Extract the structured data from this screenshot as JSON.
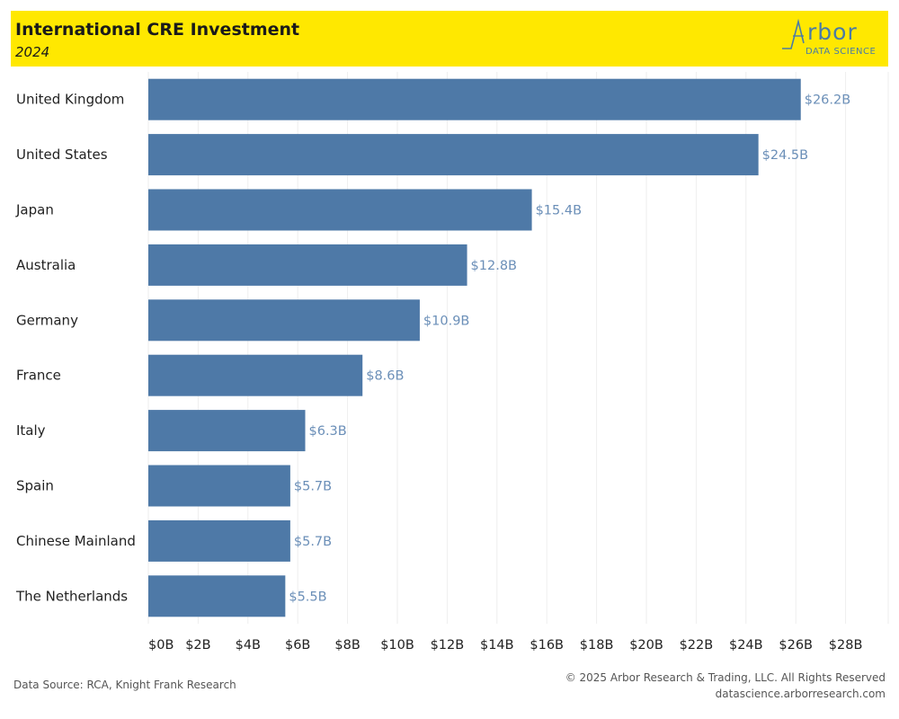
{
  "header": {
    "title": "International CRE Investment",
    "subtitle": "2024",
    "logo_word": "rbor",
    "logo_sub": "DATA SCIENCE"
  },
  "colors": {
    "header_bg": "#ffe800",
    "bar": "#4e79a7",
    "label": "#6b8fb8",
    "grid": "#eeeeee"
  },
  "chart_data": {
    "type": "bar",
    "orientation": "horizontal",
    "categories": [
      "United Kingdom",
      "United States",
      "Japan",
      "Australia",
      "Germany",
      "France",
      "Italy",
      "Spain",
      "Chinese Mainland",
      "The Netherlands"
    ],
    "values": [
      26.2,
      24.5,
      15.4,
      12.8,
      10.9,
      8.6,
      6.3,
      5.7,
      5.7,
      5.5
    ],
    "data_labels": [
      "$26.2B",
      "$24.5B",
      "$15.4B",
      "$12.8B",
      "$10.9B",
      "$8.6B",
      "$6.3B",
      "$5.7B",
      "$5.7B",
      "$5.5B"
    ],
    "xlim": [
      0,
      29
    ],
    "x_ticks": [
      0,
      2,
      4,
      6,
      8,
      10,
      12,
      14,
      16,
      18,
      20,
      22,
      24,
      26,
      28
    ],
    "x_tick_labels": [
      "$0B",
      "$2B",
      "$4B",
      "$6B",
      "$8B",
      "$10B",
      "$12B",
      "$14B",
      "$16B",
      "$18B",
      "$20B",
      "$22B",
      "$24B",
      "$26B",
      "$28B"
    ],
    "grid": true
  },
  "footer": {
    "source": "Data Source: RCA, Knight Frank Research",
    "copyright": "© 2025 Arbor Research & Trading, LLC. All Rights Reserved",
    "website": "datascience.arborresearch.com"
  }
}
